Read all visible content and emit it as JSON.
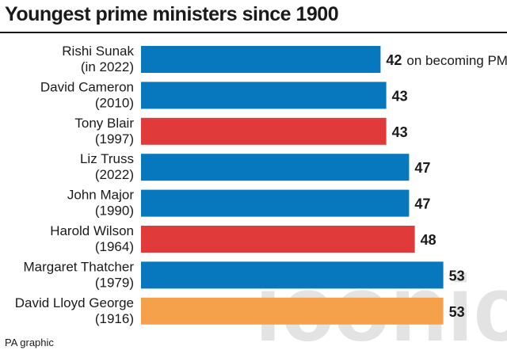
{
  "title": "Youngest prime ministers since 1900",
  "source": "PA graphic",
  "watermark": "iconic",
  "colors": {
    "blue": "#0878be",
    "red": "#e03a3a",
    "orange": "#f5a04a",
    "text": "#1a1a1a"
  },
  "chart_data": {
    "type": "bar",
    "orientation": "horizontal",
    "title": "Youngest prime ministers since 1900",
    "xlim": [
      0,
      55
    ],
    "grid": false,
    "categories": [
      [
        "Rishi Sunak",
        "(in 2022)"
      ],
      [
        "David Cameron",
        "(2010)"
      ],
      [
        "Tony Blair",
        "(1997)"
      ],
      [
        "Liz Truss",
        "(2022)"
      ],
      [
        "John Major",
        "(1990)"
      ],
      [
        "Harold Wilson",
        "(1964)"
      ],
      [
        "Margaret Thatcher",
        "(1979)"
      ],
      [
        "David Lloyd George",
        "(1916)"
      ]
    ],
    "values": [
      42,
      43,
      43,
      47,
      47,
      48,
      53,
      53
    ],
    "value_labels": [
      "42",
      "43",
      "43",
      "47",
      "47",
      "48",
      "53",
      "53"
    ],
    "bar_colors": [
      "blue",
      "blue",
      "red",
      "blue",
      "blue",
      "red",
      "blue",
      "orange"
    ],
    "annotations": [
      {
        "index": 0,
        "text": "on becoming PM"
      }
    ]
  }
}
